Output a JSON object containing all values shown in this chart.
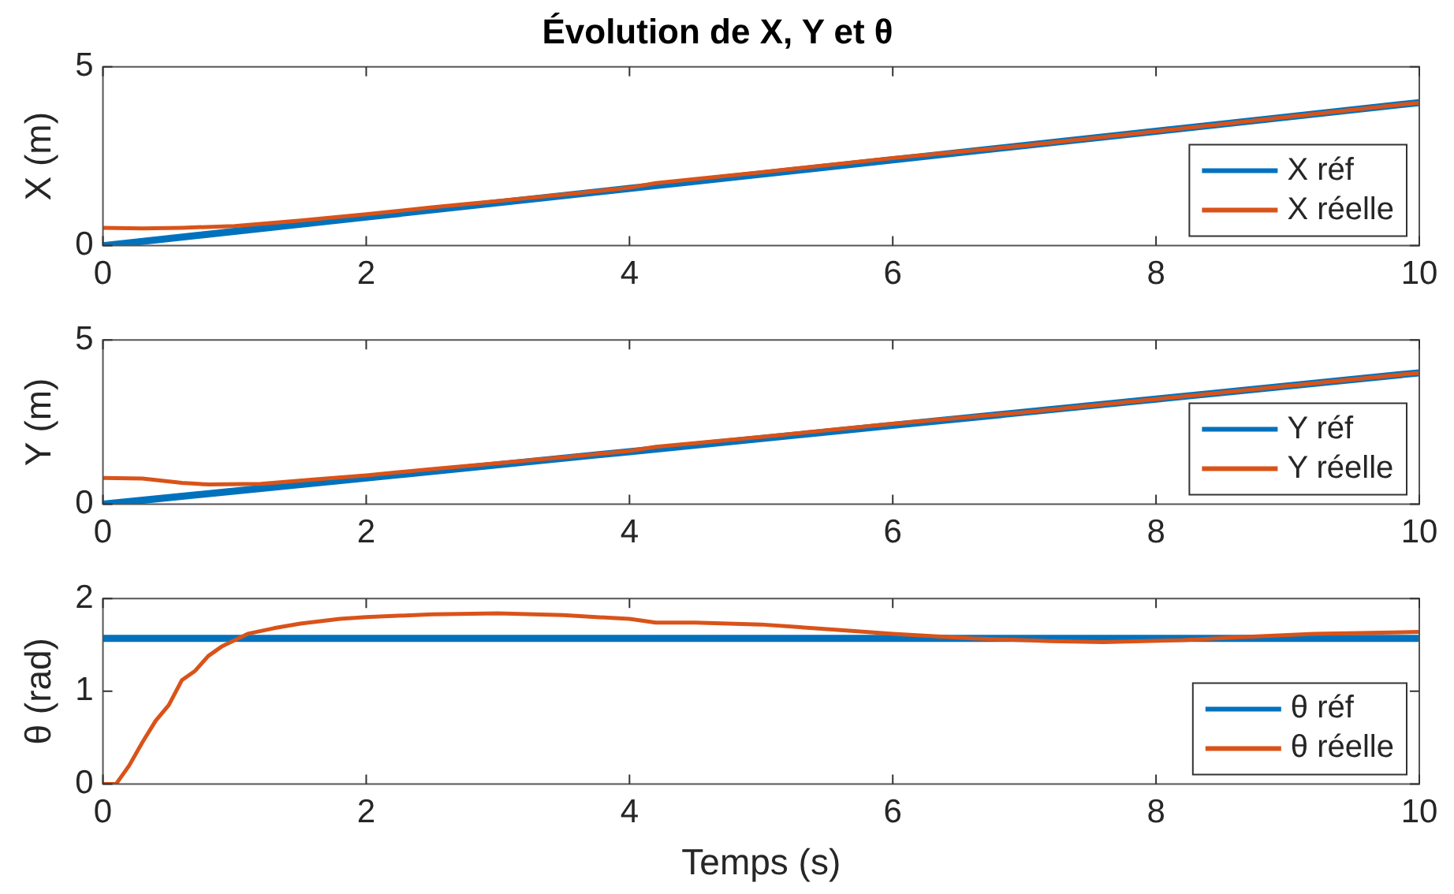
{
  "chart_data": [
    {
      "type": "line",
      "title": "Évolution de X, Y et θ",
      "ylabel": "X (m)",
      "x": [
        0,
        2,
        4,
        6,
        8,
        10
      ],
      "xlim": [
        0,
        10
      ],
      "xticks": [
        0,
        2,
        4,
        6,
        8,
        10
      ],
      "ylim": [
        0,
        5
      ],
      "yticks": [
        0,
        5
      ],
      "grid": false,
      "legend": "bottom right",
      "series": [
        {
          "name": "X réf",
          "color": "#0072bd",
          "values": [
            0,
            0.8,
            1.6,
            2.4,
            3.2,
            4.0
          ]
        },
        {
          "name": "X réelle",
          "color": "#d95319",
          "x": [
            0,
            0.3,
            0.6,
            1,
            1.5,
            2,
            2.5,
            3,
            3.5,
            4,
            4.2,
            5,
            6,
            7,
            8,
            9,
            10
          ],
          "values": [
            0.5,
            0.48,
            0.5,
            0.55,
            0.7,
            0.88,
            1.07,
            1.25,
            1.43,
            1.62,
            1.75,
            2.05,
            2.45,
            2.8,
            3.2,
            3.6,
            4.0
          ]
        }
      ]
    },
    {
      "type": "line",
      "ylabel": "Y (m)",
      "x": [
        0,
        2,
        4,
        6,
        8,
        10
      ],
      "xlim": [
        0,
        10
      ],
      "xticks": [
        0,
        2,
        4,
        6,
        8,
        10
      ],
      "ylim": [
        0,
        5
      ],
      "yticks": [
        0,
        5
      ],
      "grid": false,
      "legend": "bottom right",
      "series": [
        {
          "name": "Y réf",
          "color": "#0072bd",
          "values": [
            0,
            0.8,
            1.6,
            2.4,
            3.2,
            4.0
          ]
        },
        {
          "name": "Y réelle",
          "color": "#d95319",
          "x": [
            0,
            0.3,
            0.6,
            0.8,
            1.2,
            1.6,
            2,
            2.5,
            3,
            3.5,
            4,
            4.2,
            5,
            6,
            7,
            8,
            9,
            10
          ],
          "values": [
            0.8,
            0.78,
            0.65,
            0.6,
            0.62,
            0.75,
            0.88,
            1.07,
            1.25,
            1.43,
            1.62,
            1.75,
            2.05,
            2.45,
            2.8,
            3.2,
            3.6,
            4.0
          ]
        }
      ]
    },
    {
      "type": "line",
      "xlabel": "Temps (s)",
      "ylabel": "θ (rad)",
      "x": [
        0,
        10
      ],
      "xlim": [
        0,
        10
      ],
      "xticks": [
        0,
        2,
        4,
        6,
        8,
        10
      ],
      "ylim": [
        0,
        2
      ],
      "yticks": [
        0,
        1,
        2
      ],
      "grid": false,
      "legend": "bottom right",
      "series": [
        {
          "name": "θ réf",
          "color": "#0072bd",
          "values": [
            1.57,
            1.57
          ]
        },
        {
          "name": "θ réelle",
          "color": "#d95319",
          "x": [
            0,
            0.1,
            0.2,
            0.3,
            0.4,
            0.5,
            0.6,
            0.7,
            0.8,
            0.9,
            1.0,
            1.1,
            1.3,
            1.5,
            1.8,
            2,
            2.5,
            3,
            3.5,
            4,
            4.2,
            4.5,
            5,
            5.5,
            6,
            6.6,
            7.2,
            7.6,
            8.2,
            8.6,
            9.2,
            10
          ],
          "values": [
            0,
            0,
            0.2,
            0.45,
            0.68,
            0.85,
            1.12,
            1.22,
            1.38,
            1.48,
            1.55,
            1.62,
            1.68,
            1.73,
            1.78,
            1.8,
            1.83,
            1.84,
            1.82,
            1.78,
            1.74,
            1.74,
            1.72,
            1.67,
            1.62,
            1.57,
            1.54,
            1.53,
            1.55,
            1.58,
            1.62,
            1.64
          ]
        }
      ]
    }
  ]
}
